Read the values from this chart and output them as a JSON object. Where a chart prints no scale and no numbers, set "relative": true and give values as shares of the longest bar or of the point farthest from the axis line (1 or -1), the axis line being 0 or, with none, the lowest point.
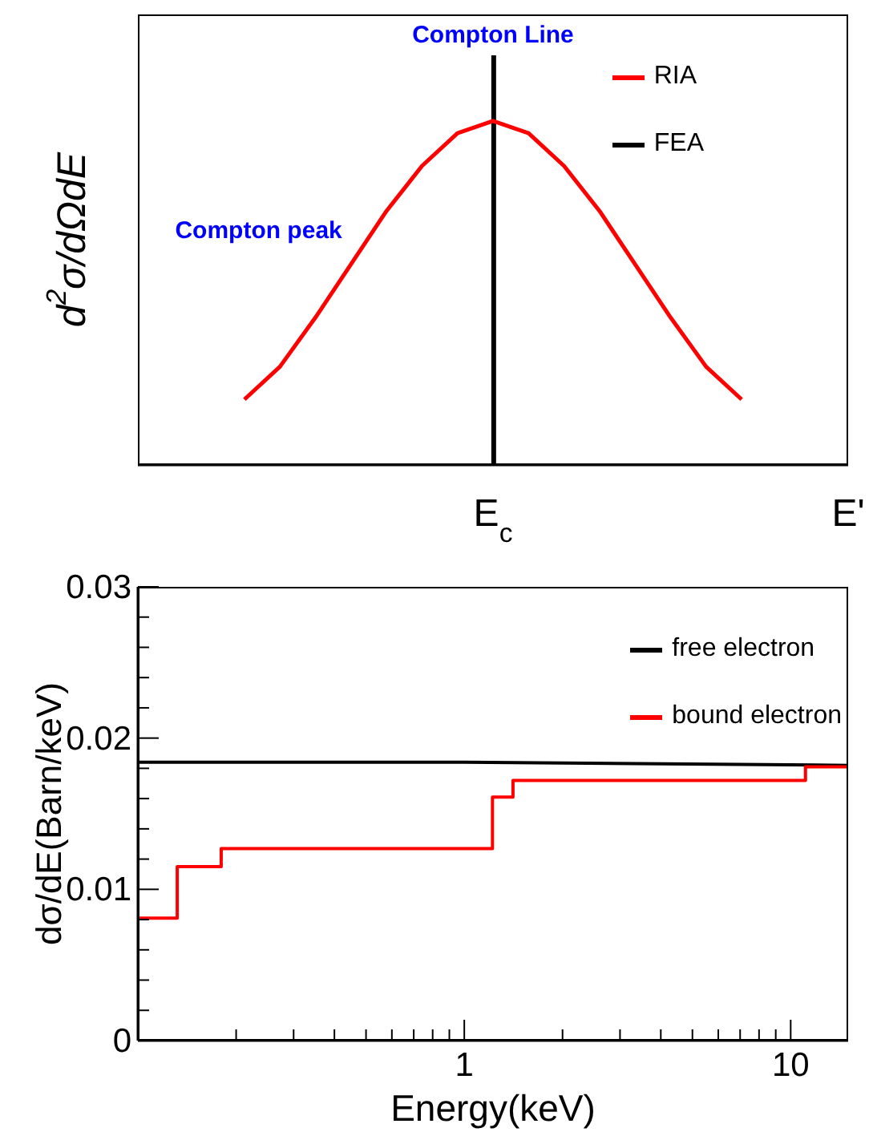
{
  "chart_data": [
    {
      "type": "line",
      "relative": true,
      "ylabel": "d$^{2}$σ/dΩdE",
      "categories": [
        null,
        null,
        null,
        null,
        null,
        null,
        null,
        null,
        null,
        null,
        "E$_{c}$",
        null,
        null,
        null,
        null,
        null,
        null,
        null,
        null,
        null,
        "E'"
      ],
      "legend": "top right",
      "series": [
        {
          "name": "RIA",
          "color": "#ff0000",
          "values": [
            null,
            null,
            null,
            0.16,
            0.24,
            0.36,
            0.49,
            0.62,
            0.73,
            0.81,
            0.84,
            0.81,
            0.73,
            0.62,
            0.49,
            0.36,
            0.24,
            0.16,
            null,
            null,
            null
          ]
        },
        {
          "name": "FEA",
          "color": "#000000",
          "type": "bar",
          "values": [
            null,
            null,
            null,
            null,
            null,
            null,
            null,
            null,
            null,
            null,
            1,
            null,
            null,
            null,
            null,
            null,
            null,
            null,
            null,
            null,
            null
          ]
        }
      ],
      "annotations": [
        "Compton Line",
        "Compton peak"
      ]
    },
    {
      "type": "step",
      "log": "x",
      "xlabel": "Energy(keV)",
      "ylabel": "dσ/dE(Barn/keV)",
      "xlim": [
        0.1,
        15
      ],
      "ylim": [
        0,
        0.03
      ],
      "legend": "top right",
      "xticks": [
        {
          "value": 0.2,
          "label": null
        },
        {
          "value": 0.3,
          "label": null
        },
        {
          "value": 0.4,
          "label": null
        },
        {
          "value": 0.5,
          "label": null
        },
        {
          "value": 0.6,
          "label": null
        },
        {
          "value": 0.7,
          "label": null
        },
        {
          "value": 0.8,
          "label": null
        },
        {
          "value": 0.9,
          "label": null
        },
        1,
        {
          "value": 2,
          "label": null
        },
        {
          "value": 3,
          "label": null
        },
        {
          "value": 4,
          "label": null
        },
        {
          "value": 5,
          "label": null
        },
        {
          "value": 6,
          "label": null
        },
        {
          "value": 7,
          "label": null
        },
        {
          "value": 8,
          "label": null
        },
        {
          "value": 9,
          "label": null
        },
        10
      ],
      "yticks": [
        0,
        {
          "value": 0.002,
          "label": null
        },
        {
          "value": 0.004,
          "label": null
        },
        {
          "value": 0.006,
          "label": null
        },
        {
          "value": 0.008,
          "label": null
        },
        0.01,
        {
          "value": 0.012,
          "label": null
        },
        {
          "value": 0.014,
          "label": null
        },
        {
          "value": 0.016,
          "label": null
        },
        {
          "value": 0.018,
          "label": null
        },
        0.02,
        {
          "value": 0.022,
          "label": null
        },
        {
          "value": 0.024,
          "label": null
        },
        {
          "value": 0.026,
          "label": null
        },
        {
          "value": 0.028,
          "label": null
        },
        0.03
      ],
      "series": [
        {
          "name": "free electron",
          "color": "#000000",
          "type": "line",
          "x": [
            0.1,
            1,
            15
          ],
          "values": [
            0.0184,
            0.0184,
            0.0182
          ]
        },
        {
          "name": "bound electron",
          "color": "#ff0000",
          "x": [
            0.1,
            0.132,
            0.18,
            1.22,
            1.41,
            11.1,
            15
          ],
          "values": [
            0.0081,
            0.0115,
            0.0127,
            0.0161,
            0.0172,
            0.0181,
            0.0181
          ]
        }
      ]
    }
  ]
}
